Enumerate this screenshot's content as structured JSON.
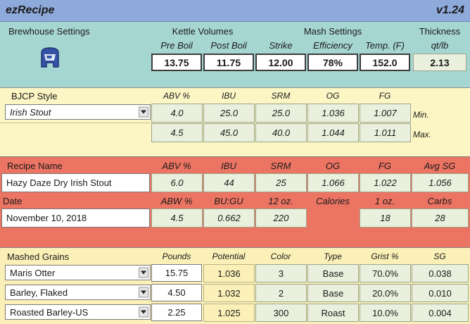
{
  "app": {
    "title": "ezRecipe",
    "version": "v1.24"
  },
  "colors": {
    "title_bar": "#8eaadb",
    "settings_bg": "#a6d6d2",
    "bjcp_bg": "#fcf6c4",
    "recipe_bg": "#ec7463",
    "grains_bg": "#fbf1b8",
    "cell_green": "#eaf0dd"
  },
  "settings": {
    "brewhouse_label": "Brewhouse Settings",
    "brewhouse_icon": "brewhouse-logo-icon",
    "kettle_label": "Kettle Volumes",
    "mash_label": "Mash Settings",
    "thickness_label": "Thickness",
    "headers": [
      "Pre Boil",
      "Post Boil",
      "Strike",
      "Efficiency",
      "Temp. (F)",
      "qt/lb"
    ],
    "values": [
      "13.75",
      "11.75",
      "12.00",
      "78%",
      "152.0",
      "2.13"
    ]
  },
  "bjcp": {
    "label": "BJCP Style",
    "style": "Irish Stout",
    "headers": [
      "ABV %",
      "IBU",
      "SRM",
      "OG",
      "FG"
    ],
    "min": [
      "4.0",
      "25.0",
      "25.0",
      "1.036",
      "1.007"
    ],
    "max": [
      "4.5",
      "45.0",
      "40.0",
      "1.044",
      "1.011"
    ],
    "min_label": "Min.",
    "max_label": "Max."
  },
  "recipe": {
    "name_label": "Recipe Name",
    "name_value": "Hazy Daze Dry Irish Stout",
    "headers1": [
      "ABV %",
      "IBU",
      "SRM",
      "OG",
      "FG",
      "Avg SG"
    ],
    "values1": [
      "6.0",
      "44",
      "25",
      "1.066",
      "1.022",
      "1.056"
    ],
    "date_label": "Date",
    "date_value": "November 10, 2018",
    "headers2": [
      "ABW %",
      "BU:GU",
      "12 oz.",
      "Calories",
      "1 oz.",
      "Carbs"
    ],
    "values2": [
      "4.5",
      "0.662",
      "220",
      "",
      "18",
      "28"
    ]
  },
  "grains": {
    "label": "Mashed Grains",
    "headers": [
      "Pounds",
      "Potential",
      "Color",
      "Type",
      "Grist %",
      "SG"
    ],
    "rows": [
      {
        "name": "Maris Otter",
        "pounds": "15.75",
        "potential": "1.036",
        "color": "3",
        "type": "Base",
        "grist": "70.0%",
        "sg": "0.038"
      },
      {
        "name": "Barley, Flaked",
        "pounds": "4.50",
        "potential": "1.032",
        "color": "2",
        "type": "Base",
        "grist": "20.0%",
        "sg": "0.010"
      },
      {
        "name": "Roasted Barley-US",
        "pounds": "2.25",
        "potential": "1.025",
        "color": "300",
        "type": "Roast",
        "grist": "10.0%",
        "sg": "0.004"
      }
    ]
  }
}
